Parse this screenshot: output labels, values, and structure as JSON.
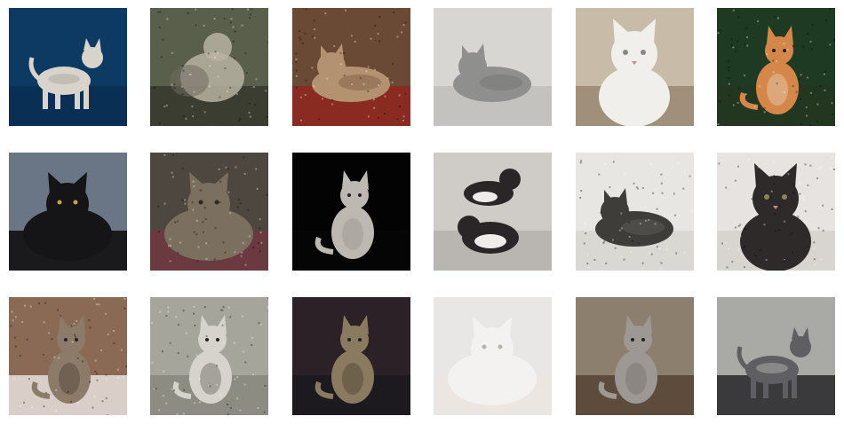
{
  "grid": {
    "rows": 3,
    "columns": 6,
    "tiles": [
      {
        "subject": "cat",
        "bg": "#0d3a63",
        "floor": "#0a2f55",
        "cat": "#d8d4cc",
        "accent": "#9a958c",
        "pose": "standing",
        "noise": false
      },
      {
        "subject": "cat",
        "bg": "#5a5f4c",
        "floor": "#3b3d30",
        "cat": "#b9b3a2",
        "accent": "#6f6a5e",
        "pose": "blurred",
        "noise": true
      },
      {
        "subject": "cat",
        "bg": "#6b4a35",
        "floor": "#8a2b22",
        "cat": "#b29271",
        "accent": "#6a4a32",
        "pose": "lying",
        "noise": true
      },
      {
        "subject": "cat",
        "bg": "#d7d6d2",
        "floor": "#c3c2be",
        "cat": "#8f8f8d",
        "accent": "#6b6b69",
        "pose": "lying",
        "noise": false
      },
      {
        "subject": "cat",
        "bg": "#c8bba8",
        "floor": "#a08f7a",
        "cat": "#f1efeb",
        "accent": "#8b8682",
        "pose": "sitting-face",
        "noise": false
      },
      {
        "subject": "cat",
        "bg": "#1f3a22",
        "floor": "#23361f",
        "cat": "#d5874a",
        "accent": "#e9e2d8",
        "pose": "sitting",
        "noise": true
      },
      {
        "subject": "cat",
        "bg": "#6a7685",
        "floor": "#1a1a1d",
        "cat": "#151517",
        "accent": "#c2a24a",
        "pose": "loaf",
        "noise": false
      },
      {
        "subject": "cat",
        "bg": "#4e4740",
        "floor": "#6a3a40",
        "cat": "#7b6f5f",
        "accent": "#2e2822",
        "pose": "loaf",
        "noise": true
      },
      {
        "subject": "cat",
        "bg": "#030303",
        "floor": "#050505",
        "cat": "#bdb8b2",
        "accent": "#8e8a85",
        "pose": "sitting",
        "noise": false
      },
      {
        "subject": "cat",
        "bg": "#cfccc8",
        "floor": "#b9b6b2",
        "cat": "#2a2628",
        "accent": "#efecea",
        "pose": "two-cats",
        "noise": false
      },
      {
        "subject": "cat",
        "bg": "#e7e6e2",
        "floor": "#dad8d2",
        "cat": "#3e3d3a",
        "accent": "#6e6b64",
        "pose": "lying",
        "noise": true
      },
      {
        "subject": "cat",
        "bg": "#e6e3e0",
        "floor": "#d8d4d0",
        "cat": "#2e2a2a",
        "accent": "#8a8458",
        "pose": "sitting-face",
        "noise": true
      },
      {
        "subject": "cat",
        "bg": "#8a6a55",
        "floor": "#d9cfc8",
        "cat": "#8d7b6a",
        "accent": "#3e3128",
        "pose": "sitting",
        "noise": true
      },
      {
        "subject": "cat",
        "bg": "#a6a59b",
        "floor": "#8d8c83",
        "cat": "#d6d3cc",
        "accent": "#4b4943",
        "pose": "sitting",
        "noise": true
      },
      {
        "subject": "cat",
        "bg": "#2b2126",
        "floor": "#1d1a1f",
        "cat": "#8a7a5f",
        "accent": "#3a3128",
        "pose": "sitting",
        "noise": false
      },
      {
        "subject": "cat",
        "bg": "#e9e7e5",
        "floor": "#ece6e3",
        "cat": "#f4f2f0",
        "accent": "#b9b3ad",
        "pose": "loaf",
        "noise": false
      },
      {
        "subject": "cat",
        "bg": "#8d7f6e",
        "floor": "#5d4b3b",
        "cat": "#9d9894",
        "accent": "#6a6560",
        "pose": "sitting",
        "noise": false
      },
      {
        "subject": "cat",
        "bg": "#a9a9a6",
        "floor": "#3a3a3c",
        "cat": "#5f5e63",
        "accent": "#d7d6d2",
        "pose": "standing",
        "noise": false
      }
    ]
  }
}
